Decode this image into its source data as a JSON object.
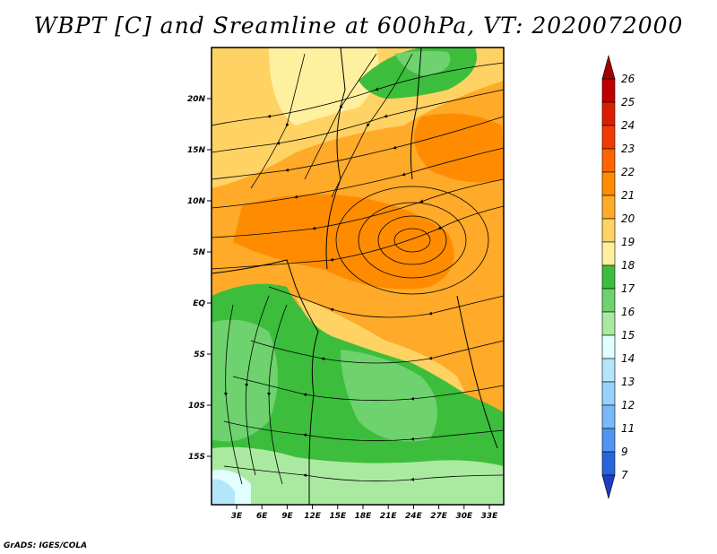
{
  "title": "WBPT [C] and Sreamline at 600hPa, VT: 2020072000",
  "credit": "GrADS: IGES/COLA",
  "map": {
    "lat_labels": [
      "20N",
      "15N",
      "10N",
      "5N",
      "EQ",
      "5S",
      "10S",
      "15S"
    ],
    "lon_labels": [
      "3E",
      "6E",
      "9E",
      "12E",
      "15E",
      "18E",
      "21E",
      "24E",
      "27E",
      "30E",
      "33E"
    ]
  },
  "colorbar": {
    "levels": [
      "26",
      "25",
      "24",
      "23",
      "22",
      "21",
      "20",
      "19",
      "18",
      "17",
      "16",
      "15",
      "14",
      "13",
      "12",
      "11",
      "9",
      "7"
    ],
    "colors": [
      "#a50000",
      "#c00000",
      "#dc1e00",
      "#f03c00",
      "#ff6400",
      "#ff8c00",
      "#ffaa28",
      "#ffd264",
      "#fff0a0",
      "#3cbe3c",
      "#6ed26e",
      "#aaeaa0",
      "#e1ffff",
      "#b4e6fa",
      "#96d2fa",
      "#78b9fa",
      "#5096f0",
      "#2864dc",
      "#1e3cc8"
    ]
  }
}
